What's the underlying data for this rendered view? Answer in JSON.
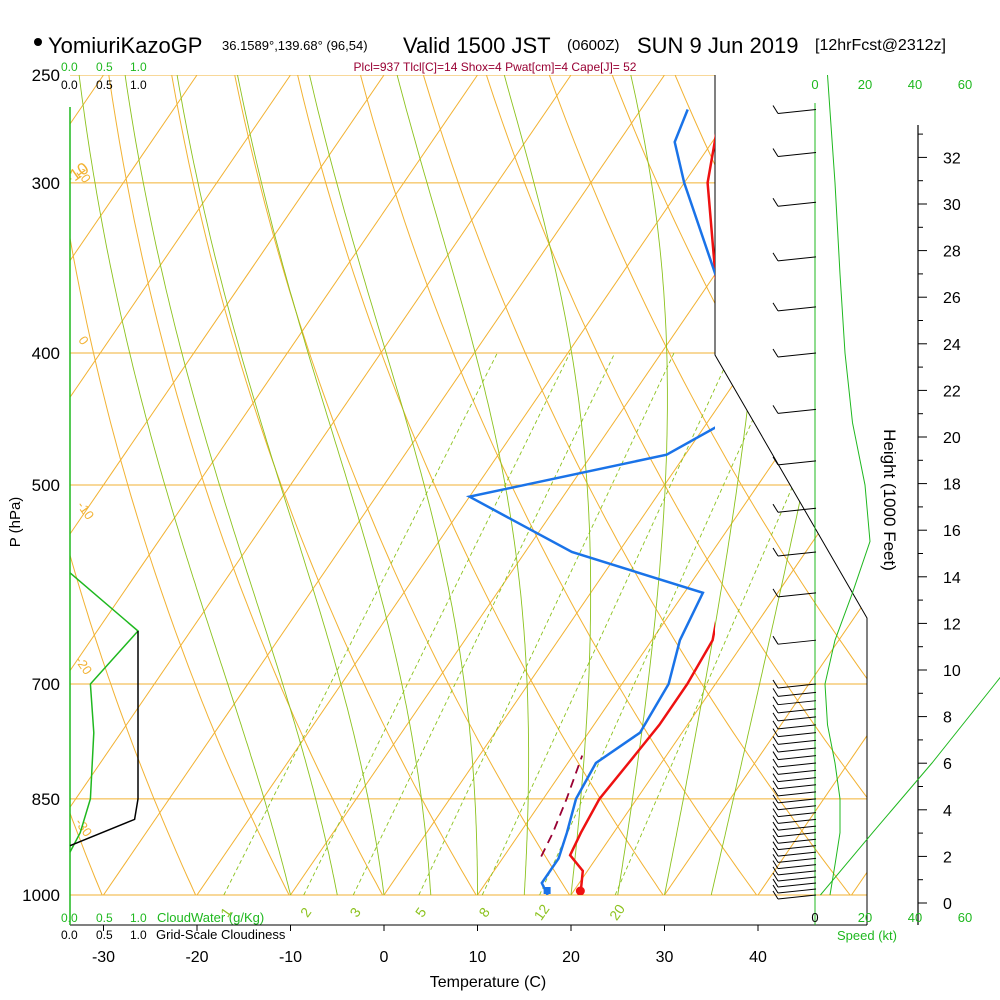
{
  "header": {
    "model": "YomiuriKazoGP",
    "coords": "36.1589°,139.68° (96,54)",
    "valid": "Valid 1500 JST",
    "utc": "(0600Z)",
    "date": "SUN 9 Jun 2019",
    "forecast": "[12hrFcst@2312z]",
    "indices": "Plcl=937 Tlcl[C]=14 Shox=4 Pwat[cm]=4 Cape[J]= 52"
  },
  "colors": {
    "temperature": "#ee1111",
    "dewpoint": "#1a73e8",
    "parcel": "#990033",
    "isobar_isotherm": "#f2b233",
    "mixing_ratio": "#8cc21e",
    "cloud": "#1fb81f",
    "frame": "#000000"
  },
  "labels": {
    "cloud_water": "CloudWater (g/Kg)",
    "cloudiness": "Grid-Scale Cloudiness",
    "cloud_ticks": [
      "0.0",
      "0.5",
      "1.0"
    ],
    "speed": "Speed (kt)"
  },
  "chart_data": {
    "type": "skew-t",
    "xlabel": "Temperature (C)",
    "ylabel": "P (hPa)",
    "y2label": "Height (1000 Feet)",
    "x_ticks": [
      -30,
      -20,
      -10,
      0,
      10,
      20,
      30,
      40
    ],
    "pressure_ticks": [
      250,
      300,
      400,
      500,
      700,
      850,
      1000
    ],
    "height_ticks": [
      0,
      2,
      4,
      6,
      8,
      10,
      12,
      14,
      16,
      18,
      20,
      22,
      24,
      26,
      28,
      30,
      32
    ],
    "speed_ticks": [
      0,
      20,
      40,
      60
    ],
    "temperature_profile": [
      {
        "p": 1000,
        "t": 21.0
      },
      {
        "p": 960,
        "t": 19.5
      },
      {
        "p": 935,
        "t": 17.0
      },
      {
        "p": 900,
        "t": 16.5
      },
      {
        "p": 850,
        "t": 16.0
      },
      {
        "p": 800,
        "t": 16.5
      },
      {
        "p": 750,
        "t": 17.0
      },
      {
        "p": 700,
        "t": 17.0
      },
      {
        "p": 650,
        "t": 16.5
      },
      {
        "p": 600,
        "t": 14.0
      },
      {
        "p": 560,
        "t": 15.0
      },
      {
        "p": 500,
        "t": 9.0
      },
      {
        "p": 460,
        "t": 3.0
      },
      {
        "p": 400,
        "t": -3.0
      },
      {
        "p": 350,
        "t": -10.0
      },
      {
        "p": 300,
        "t": -17.5
      },
      {
        "p": 265,
        "t": -21.5
      }
    ],
    "dewpoint_profile": [
      {
        "p": 1000,
        "t": 17.5
      },
      {
        "p": 980,
        "t": 16.0
      },
      {
        "p": 940,
        "t": 16.0
      },
      {
        "p": 900,
        "t": 15.0
      },
      {
        "p": 850,
        "t": 13.5
      },
      {
        "p": 800,
        "t": 13.0
      },
      {
        "p": 760,
        "t": 15.5
      },
      {
        "p": 700,
        "t": 15.0
      },
      {
        "p": 650,
        "t": 13.0
      },
      {
        "p": 600,
        "t": 12.0
      },
      {
        "p": 560,
        "t": -5.0
      },
      {
        "p": 510,
        "t": -20.0
      },
      {
        "p": 475,
        "t": -2.0
      },
      {
        "p": 430,
        "t": 5.0
      },
      {
        "p": 400,
        "t": -0.5
      },
      {
        "p": 350,
        "t": -10.0
      },
      {
        "p": 300,
        "t": -20.0
      },
      {
        "p": 280,
        "t": -24.0
      },
      {
        "p": 265,
        "t": -25.0
      }
    ],
    "parcel_profile": [
      {
        "p": 937,
        "t": 14.0
      },
      {
        "p": 900,
        "t": 13.5
      },
      {
        "p": 850,
        "t": 12.5
      },
      {
        "p": 790,
        "t": 11.0
      }
    ],
    "surface_temperature": 21.0,
    "surface_dewpoint": 17.5,
    "dry_adiabat_labels": [
      -10,
      0,
      10,
      20,
      30
    ],
    "isotherm_labels": [
      10,
      0,
      -10,
      -20,
      -30
    ],
    "mixing_ratio_labels": [
      1,
      2,
      3,
      5,
      8,
      12,
      20
    ],
    "height_profile_kft": [
      {
        "p": 1000,
        "v": 0.3
      },
      {
        "p": 900,
        "v": 3.2
      },
      {
        "p": 800,
        "v": 6.5
      },
      {
        "p": 700,
        "v": 10.0
      },
      {
        "p": 600,
        "v": 14.0
      },
      {
        "p": 500,
        "v": 18.5
      },
      {
        "p": 400,
        "v": 23.7
      },
      {
        "p": 300,
        "v": 30.0
      },
      {
        "p": 250,
        "v": 34.0
      }
    ],
    "wind_speed_kt": [
      {
        "p": 1000,
        "v": 6
      },
      {
        "p": 950,
        "v": 8
      },
      {
        "p": 900,
        "v": 10
      },
      {
        "p": 850,
        "v": 10
      },
      {
        "p": 800,
        "v": 8
      },
      {
        "p": 750,
        "v": 5
      },
      {
        "p": 700,
        "v": 4
      },
      {
        "p": 650,
        "v": 8
      },
      {
        "p": 600,
        "v": 15
      },
      {
        "p": 550,
        "v": 22
      },
      {
        "p": 500,
        "v": 20
      },
      {
        "p": 450,
        "v": 15
      },
      {
        "p": 400,
        "v": 12
      },
      {
        "p": 350,
        "v": 10
      },
      {
        "p": 300,
        "v": 8
      },
      {
        "p": 250,
        "v": 5
      }
    ],
    "cloud_water_gkg": [
      {
        "p": 580,
        "v": 0.0
      },
      {
        "p": 640,
        "v": 1.0
      },
      {
        "p": 700,
        "v": 0.3
      },
      {
        "p": 760,
        "v": 0.35
      },
      {
        "p": 850,
        "v": 0.3
      },
      {
        "p": 900,
        "v": 0.15
      },
      {
        "p": 930,
        "v": 0.0
      }
    ],
    "cloudiness_frac": [
      {
        "p": 640,
        "v": 1.0
      },
      {
        "p": 850,
        "v": 1.0
      },
      {
        "p": 880,
        "v": 0.95
      },
      {
        "p": 920,
        "v": 0.0
      }
    ]
  }
}
